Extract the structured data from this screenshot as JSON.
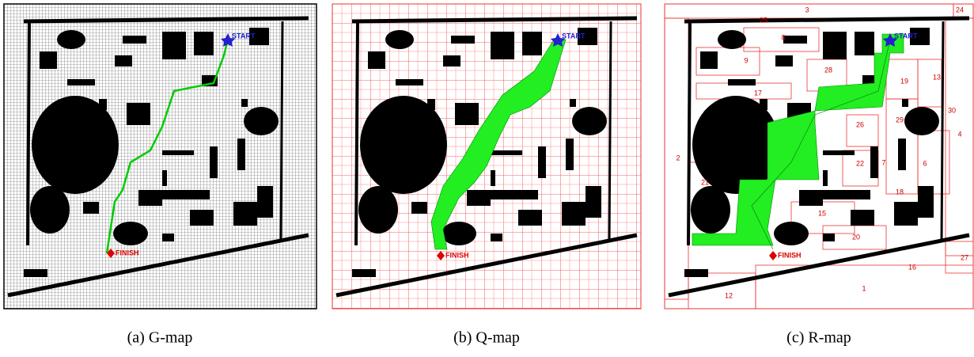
{
  "panels": [
    {
      "caption": "(a) G-map",
      "start_label": "START",
      "finish_label": "FINISH"
    },
    {
      "caption": "(b) Q-map",
      "start_label": "START",
      "finish_label": "FINISH"
    },
    {
      "caption": "(c) R-map",
      "start_label": "START",
      "finish_label": "FINISH",
      "region_labels": [
        3,
        25,
        24,
        8,
        9,
        28,
        13,
        19,
        17,
        30,
        29,
        26,
        4,
        2,
        6,
        7,
        22,
        21,
        18,
        15,
        20,
        27,
        16,
        1,
        12
      ]
    }
  ]
}
